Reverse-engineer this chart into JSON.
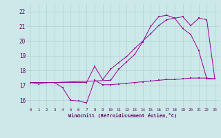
{
  "xlabel": "Windchill (Refroidissement éolien,°C)",
  "background_color": "#cce8e8",
  "grid_color": "#aacccc",
  "line_color": "#990099",
  "xlim": [
    -0.5,
    23.5
  ],
  "ylim": [
    15.5,
    22.5
  ],
  "xticks": [
    0,
    1,
    2,
    3,
    4,
    5,
    6,
    7,
    8,
    9,
    10,
    11,
    12,
    13,
    14,
    15,
    16,
    17,
    18,
    19,
    20,
    21,
    22,
    23
  ],
  "yticks": [
    16,
    17,
    18,
    19,
    20,
    21,
    22
  ],
  "curve1_x": [
    0,
    1,
    2,
    3,
    4,
    5,
    6,
    7,
    8,
    9,
    10,
    11,
    12,
    13,
    14,
    15,
    16,
    17,
    18,
    19,
    20,
    21,
    22,
    23
  ],
  "curve1_y": [
    17.2,
    17.1,
    17.2,
    17.2,
    16.85,
    16.0,
    15.95,
    15.82,
    17.35,
    17.05,
    17.05,
    17.1,
    17.15,
    17.2,
    17.25,
    17.3,
    17.35,
    17.4,
    17.4,
    17.45,
    17.5,
    17.5,
    17.5,
    17.45
  ],
  "curve2_x": [
    0,
    3,
    7,
    8,
    9,
    10,
    11,
    12,
    13,
    14,
    15,
    16,
    17,
    18,
    19,
    20,
    21,
    22,
    23
  ],
  "curve2_y": [
    17.2,
    17.2,
    17.2,
    18.3,
    17.4,
    18.1,
    18.55,
    18.95,
    19.5,
    20.0,
    20.5,
    21.05,
    21.45,
    21.55,
    20.85,
    20.45,
    19.35,
    17.45,
    17.45
  ],
  "curve3_x": [
    0,
    3,
    10,
    11,
    12,
    13,
    14,
    15,
    16,
    17,
    18,
    19,
    20,
    21,
    22,
    23
  ],
  "curve3_y": [
    17.2,
    17.2,
    17.35,
    18.1,
    18.6,
    19.1,
    19.95,
    21.0,
    21.65,
    21.75,
    21.55,
    21.65,
    21.05,
    21.55,
    21.45,
    17.45
  ]
}
